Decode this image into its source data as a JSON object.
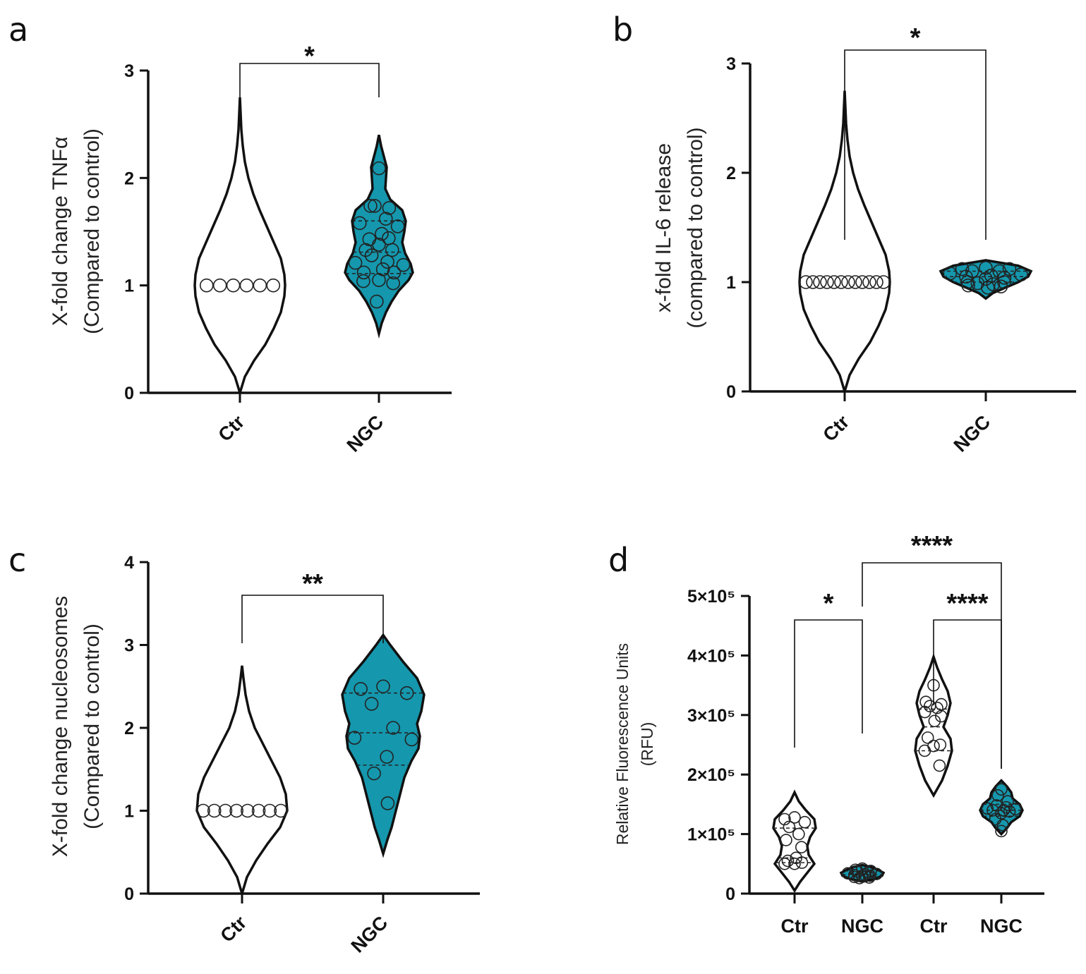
{
  "colors": {
    "ngc_fill": "#1597ad",
    "ctr_fill": "#ffffff",
    "line": "#111111"
  },
  "chart_data": [
    {
      "panel": "a",
      "type": "violin",
      "ylabel_line1": "X-fold change TNFα",
      "ylabel_line2": "(Compared to control)",
      "ylim": [
        0,
        3
      ],
      "yticks": [
        0,
        1,
        2,
        3
      ],
      "categories": [
        "Ctr",
        "NGC"
      ],
      "significance": [
        {
          "from": 0,
          "to": 1,
          "label": "*"
        }
      ],
      "series": [
        {
          "name": "Ctr",
          "fill": "#ffffff",
          "profile": [
            [
              0,
              0
            ],
            [
              0.15,
              7
            ],
            [
              0.3,
              20
            ],
            [
              0.45,
              36
            ],
            [
              0.6,
              48
            ],
            [
              0.75,
              58
            ],
            [
              0.9,
              63
            ],
            [
              1.0,
              64
            ],
            [
              1.1,
              63
            ],
            [
              1.25,
              58
            ],
            [
              1.4,
              48
            ],
            [
              1.55,
              38
            ],
            [
              1.7,
              28
            ],
            [
              1.85,
              19
            ],
            [
              2.0,
              12
            ],
            [
              2.15,
              7
            ],
            [
              2.3,
              4
            ],
            [
              2.45,
              2
            ],
            [
              2.6,
              1
            ],
            [
              2.75,
              0
            ]
          ],
          "points": [
            1.0,
            1.0,
            1.0,
            1.0,
            1.0,
            1.0
          ],
          "quartiles": []
        },
        {
          "name": "NGC",
          "fill": "#1597ad",
          "profile": [
            [
              0.55,
              0
            ],
            [
              0.65,
              4
            ],
            [
              0.75,
              10
            ],
            [
              0.85,
              18
            ],
            [
              0.95,
              28
            ],
            [
              1.05,
              42
            ],
            [
              1.12,
              48
            ],
            [
              1.2,
              45
            ],
            [
              1.3,
              37
            ],
            [
              1.4,
              33
            ],
            [
              1.5,
              36
            ],
            [
              1.6,
              38
            ],
            [
              1.7,
              33
            ],
            [
              1.8,
              16
            ],
            [
              1.9,
              9
            ],
            [
              2.0,
              10
            ],
            [
              2.1,
              11
            ],
            [
              2.2,
              7
            ],
            [
              2.3,
              3
            ],
            [
              2.4,
              0
            ]
          ],
          "points": [
            2.09,
            1.74,
            1.72,
            1.74,
            1.62,
            1.58,
            1.55,
            1.48,
            1.43,
            1.44,
            1.38,
            1.33,
            1.33,
            1.28,
            1.22,
            1.21,
            1.19,
            1.15,
            1.12,
            1.12,
            1.05,
            1.04,
            1.02,
            0.85
          ],
          "quartiles": [
            1.11,
            1.31,
            1.6
          ]
        }
      ]
    },
    {
      "panel": "b",
      "type": "violin",
      "ylabel_line1": "x-fold IL-6 release",
      "ylabel_line2": "(compared to control)",
      "ylim": [
        0,
        3
      ],
      "yticks": [
        0,
        1,
        2,
        3
      ],
      "categories": [
        "Ctr",
        "NGC"
      ],
      "significance": [
        {
          "from": 0,
          "to": 1,
          "label": "*"
        }
      ],
      "series": [
        {
          "name": "Ctr",
          "fill": "#ffffff",
          "profile": [
            [
              0,
              0
            ],
            [
              0.15,
              7
            ],
            [
              0.3,
              20
            ],
            [
              0.45,
              36
            ],
            [
              0.6,
              48
            ],
            [
              0.75,
              58
            ],
            [
              0.9,
              63
            ],
            [
              1.0,
              64
            ],
            [
              1.1,
              63
            ],
            [
              1.25,
              58
            ],
            [
              1.4,
              48
            ],
            [
              1.55,
              38
            ],
            [
              1.7,
              28
            ],
            [
              1.85,
              19
            ],
            [
              2.0,
              12
            ],
            [
              2.15,
              7
            ],
            [
              2.3,
              4
            ],
            [
              2.45,
              2
            ],
            [
              2.6,
              1
            ],
            [
              2.75,
              0
            ]
          ],
          "points": [
            1.0,
            1.0,
            1.0,
            1.0,
            1.0,
            1.0,
            1.0,
            1.0,
            1.0,
            1.0,
            1.0,
            1.0
          ],
          "quartiles": []
        },
        {
          "name": "NGC",
          "fill": "#1597ad",
          "profile": [
            [
              0.85,
              0
            ],
            [
              0.9,
              10
            ],
            [
              0.95,
              28
            ],
            [
              1.0,
              46
            ],
            [
              1.05,
              60
            ],
            [
              1.1,
              64
            ],
            [
              1.15,
              46
            ],
            [
              1.2,
              0
            ]
          ],
          "points": [
            1.13,
            1.12,
            1.12,
            1.1,
            1.1,
            1.08,
            1.07,
            1.06,
            1.05,
            1.04,
            1.03,
            1.0,
            1.0,
            0.99,
            0.98,
            0.97,
            0.96,
            0.95
          ],
          "quartiles": [
            1.0,
            1.05,
            1.1
          ]
        }
      ]
    },
    {
      "panel": "c",
      "type": "violin",
      "ylabel_line1": "X-fold change nucleosomes",
      "ylabel_line2": "(Compared to control)",
      "ylim": [
        0,
        4
      ],
      "yticks": [
        0,
        1,
        2,
        3,
        4
      ],
      "categories": [
        "Ctr",
        "NGC"
      ],
      "significance": [
        {
          "from": 0,
          "to": 1,
          "label": "**"
        }
      ],
      "series": [
        {
          "name": "Ctr",
          "fill": "#ffffff",
          "profile": [
            [
              0,
              0
            ],
            [
              0.2,
              7
            ],
            [
              0.4,
              20
            ],
            [
              0.6,
              36
            ],
            [
              0.8,
              54
            ],
            [
              1.0,
              64
            ],
            [
              1.2,
              62
            ],
            [
              1.4,
              54
            ],
            [
              1.6,
              42
            ],
            [
              1.8,
              30
            ],
            [
              2.0,
              18
            ],
            [
              2.2,
              10
            ],
            [
              2.4,
              5
            ],
            [
              2.6,
              2
            ],
            [
              2.75,
              0
            ]
          ],
          "points": [
            1.0,
            1.0,
            1.0,
            1.0,
            1.0,
            1.0,
            1.0,
            1.0
          ],
          "quartiles": []
        },
        {
          "name": "NGC",
          "fill": "#1597ad",
          "profile": [
            [
              0.48,
              0
            ],
            [
              0.65,
              6
            ],
            [
              0.8,
              12
            ],
            [
              1.0,
              18
            ],
            [
              1.2,
              24
            ],
            [
              1.4,
              30
            ],
            [
              1.6,
              40
            ],
            [
              1.75,
              50
            ],
            [
              1.9,
              52
            ],
            [
              2.05,
              48
            ],
            [
              2.2,
              54
            ],
            [
              2.4,
              58
            ],
            [
              2.6,
              48
            ],
            [
              2.8,
              28
            ],
            [
              3.0,
              10
            ],
            [
              3.12,
              0
            ]
          ],
          "points": [
            2.5,
            2.47,
            2.42,
            2.29,
            2.0,
            1.88,
            1.86,
            1.65,
            1.45,
            1.09
          ],
          "quartiles": [
            1.55,
            1.94,
            2.42
          ]
        }
      ]
    },
    {
      "panel": "d",
      "type": "violin",
      "ylabel_line1": "Relative Fluorescence Units",
      "ylabel_line2": "(RFU)",
      "ylim": [
        0,
        500000
      ],
      "yticks": [
        0,
        100000,
        200000,
        300000,
        400000,
        500000
      ],
      "ytick_labels": [
        "0",
        "1×10⁵",
        "2×10⁵",
        "3×10⁵",
        "4×10⁵",
        "5×10⁵"
      ],
      "categories": [
        "Ctr",
        "NGC",
        "Ctr",
        "NGC"
      ],
      "significance": [
        {
          "from": 0,
          "to": 1,
          "label": "*"
        },
        {
          "from": 2,
          "to": 3,
          "label": "****"
        },
        {
          "from": 1,
          "to": 3,
          "label": "****"
        }
      ],
      "series": [
        {
          "name": "Ctr",
          "fill": "#ffffff",
          "profile": [
            [
              5000,
              0
            ],
            [
              20000,
              8
            ],
            [
              35000,
              18
            ],
            [
              50000,
              28
            ],
            [
              65000,
              20
            ],
            [
              80000,
              18
            ],
            [
              95000,
              22
            ],
            [
              110000,
              30
            ],
            [
              125000,
              28
            ],
            [
              140000,
              16
            ],
            [
              155000,
              6
            ],
            [
              170000,
              0
            ]
          ],
          "points": [
            128000,
            125000,
            120000,
            112000,
            100000,
            90000,
            78000,
            60000,
            55000,
            52000,
            50000,
            50000
          ],
          "quartiles": [
            52000,
            60000,
            110000
          ]
        },
        {
          "name": "NGC",
          "fill": "#1597ad",
          "profile": [
            [
              20000,
              0
            ],
            [
              25000,
              18
            ],
            [
              30000,
              28
            ],
            [
              35000,
              30
            ],
            [
              40000,
              22
            ],
            [
              45000,
              12
            ],
            [
              48000,
              0
            ]
          ],
          "points": [
            42000,
            40000,
            38000,
            37000,
            35000,
            34000,
            33000,
            32000,
            31000,
            30000,
            29000,
            28000,
            27000,
            26000
          ],
          "quartiles": [
            28000,
            32000,
            38000
          ]
        },
        {
          "name": "Ctr",
          "fill": "#ffffff",
          "profile": [
            [
              165000,
              0
            ],
            [
              190000,
              12
            ],
            [
              215000,
              20
            ],
            [
              240000,
              26
            ],
            [
              260000,
              24
            ],
            [
              280000,
              14
            ],
            [
              300000,
              20
            ],
            [
              320000,
              24
            ],
            [
              340000,
              20
            ],
            [
              360000,
              12
            ],
            [
              380000,
              5
            ],
            [
              398000,
              0
            ]
          ],
          "points": [
            350000,
            322000,
            318000,
            315000,
            312000,
            305000,
            298000,
            290000,
            262000,
            250000,
            248000,
            240000,
            215000
          ],
          "quartiles": [
            240000,
            280000,
            310000
          ]
        },
        {
          "name": "NGC",
          "fill": "#1597ad",
          "profile": [
            [
              100000,
              0
            ],
            [
              110000,
              8
            ],
            [
              120000,
              14
            ],
            [
              130000,
              26
            ],
            [
              140000,
              30
            ],
            [
              150000,
              26
            ],
            [
              160000,
              16
            ],
            [
              170000,
              14
            ],
            [
              180000,
              8
            ],
            [
              190000,
              0
            ]
          ],
          "points": [
            175000,
            165000,
            155000,
            148000,
            145000,
            143000,
            142000,
            140000,
            140000,
            138000,
            135000,
            125000,
            115000,
            105000
          ],
          "quartiles": [
            130000,
            140000,
            150000
          ]
        }
      ]
    }
  ]
}
